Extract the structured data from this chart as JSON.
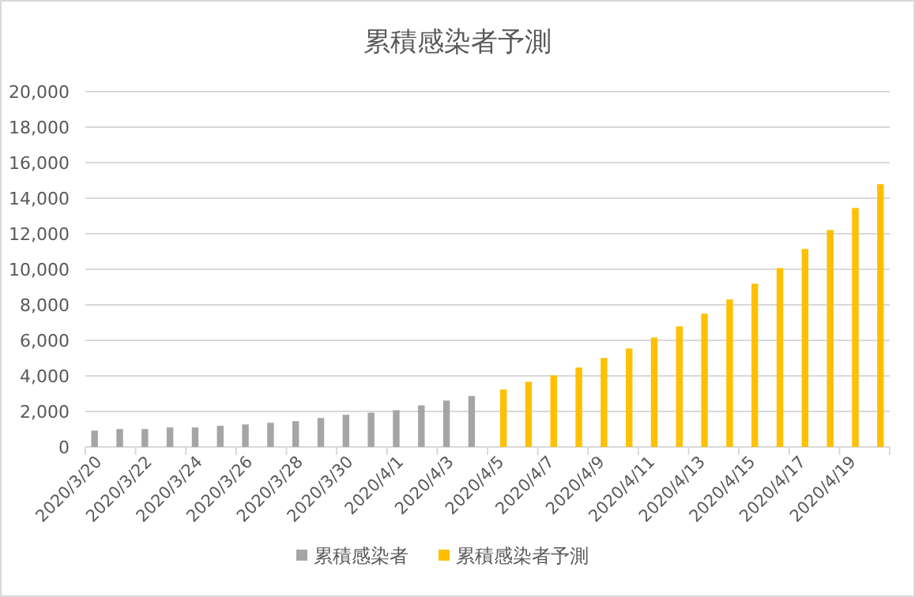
{
  "chart_data": {
    "type": "bar",
    "title": "累積感染者予測",
    "categories": [
      "2020/3/20",
      null,
      "2020/3/22",
      null,
      "2020/3/24",
      null,
      "2020/3/26",
      null,
      "2020/3/28",
      null,
      "2020/3/30",
      null,
      "2020/4/1",
      null,
      "2020/4/3",
      null,
      "2020/4/5",
      null,
      "2020/4/7",
      null,
      "2020/4/9",
      null,
      "2020/4/11",
      null,
      "2020/4/13",
      null,
      "2020/4/15",
      null,
      "2020/4/17",
      null,
      "2020/4/19",
      null
    ],
    "series": [
      {
        "name": "累積感染者",
        "color": "#a5a5a5",
        "values": [
          920,
          1010,
          1010,
          1100,
          1100,
          1190,
          1270,
          1360,
          1450,
          1630,
          1810,
          1930,
          2070,
          2340,
          2610,
          2870,
          null,
          null,
          null,
          null,
          null,
          null,
          null,
          null,
          null,
          null,
          null,
          null,
          null,
          null,
          null,
          null
        ]
      },
      {
        "name": "累積感染者予測",
        "color": "#ffc000",
        "values": [
          null,
          null,
          null,
          null,
          null,
          null,
          null,
          null,
          null,
          null,
          null,
          null,
          null,
          null,
          null,
          null,
          3230,
          3670,
          4030,
          4470,
          5010,
          5540,
          6160,
          6790,
          7500,
          8300,
          9190,
          10070,
          11140,
          12210,
          13450,
          14790
        ]
      }
    ],
    "ylim": [
      0,
      20000
    ],
    "yticks": [
      {
        "value": 0,
        "label": "0"
      },
      {
        "value": 2000,
        "label": "2,000"
      },
      {
        "value": 4000,
        "label": "4,000"
      },
      {
        "value": 6000,
        "label": "6,000"
      },
      {
        "value": 8000,
        "label": "8,000"
      },
      {
        "value": 10000,
        "label": "10,000"
      },
      {
        "value": 12000,
        "label": "12,000"
      },
      {
        "value": 14000,
        "label": "14,000"
      },
      {
        "value": 16000,
        "label": "16,000"
      },
      {
        "value": 18000,
        "label": "18,000"
      },
      {
        "value": 20000,
        "label": "20,000"
      }
    ],
    "grid": "y",
    "legend": "bottom"
  }
}
